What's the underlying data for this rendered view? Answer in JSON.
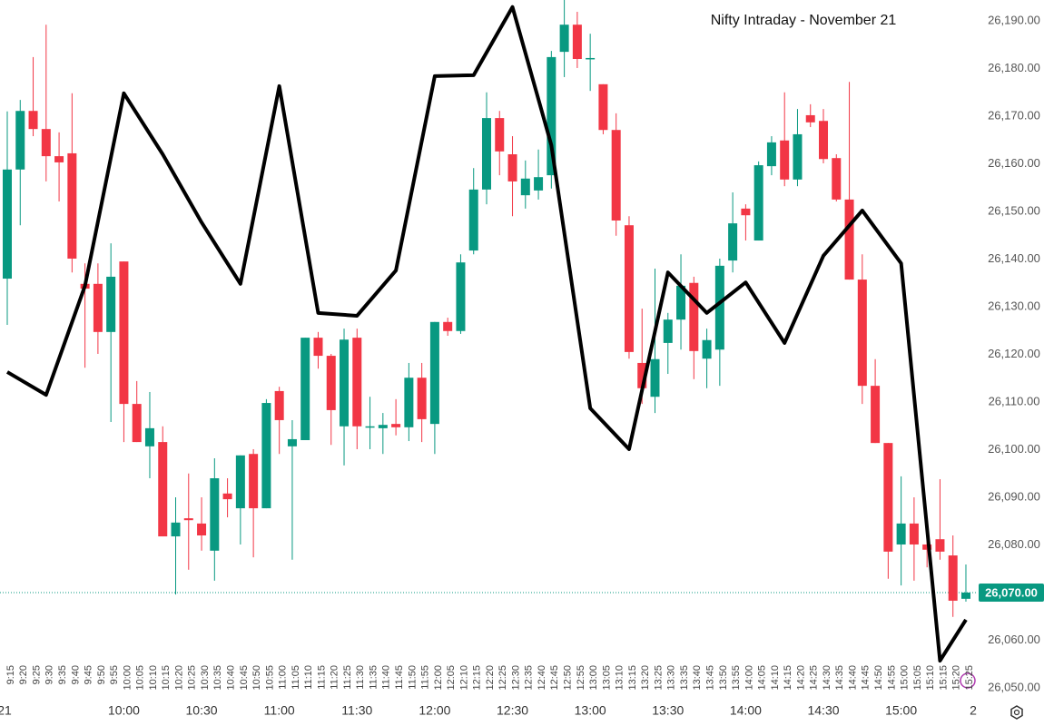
{
  "chart_data": {
    "type": "candlestick",
    "title": "Nifty Intraday - November 21",
    "categories": [
      "9:15",
      "9:20",
      "9:25",
      "9:30",
      "9:35",
      "9:40",
      "9:45",
      "9:50",
      "9:55",
      "10:00",
      "10:05",
      "10:10",
      "10:15",
      "10:20",
      "10:25",
      "10:30",
      "10:35",
      "10:40",
      "10:45",
      "10:50",
      "10:55",
      "11:00",
      "11:05",
      "11:10",
      "11:15",
      "11:20",
      "11:25",
      "11:30",
      "11:35",
      "11:40",
      "11:45",
      "11:50",
      "11:55",
      "12:00",
      "12:05",
      "12:10",
      "12:15",
      "12:20",
      "12:25",
      "12:30",
      "12:35",
      "12:40",
      "12:45",
      "12:50",
      "12:55",
      "13:00",
      "13:05",
      "13:10",
      "13:15",
      "13:20",
      "13:25",
      "13:30",
      "13:35",
      "13:40",
      "13:45",
      "13:50",
      "13:55",
      "14:00",
      "14:05",
      "14:10",
      "14:15",
      "14:20",
      "14:25",
      "14:30",
      "14:35",
      "14:40",
      "14:45",
      "14:50",
      "14:55",
      "15:00",
      "15:05",
      "15:10",
      "15:15",
      "15:20",
      "15:25"
    ],
    "open": [
      26135.9,
      26158.8,
      26171.1,
      26167.3,
      26161.6,
      26162.2,
      26134.8,
      26134.8,
      26124.7,
      26139.5,
      26109.6,
      26100.7,
      26101.6,
      26081.8,
      26085.6,
      26084.5,
      26078.8,
      26090.8,
      26087.7,
      26099.1,
      26087.7,
      26112.3,
      26100.7,
      26102,
      26123.5,
      26119.7,
      26104.9,
      26123.5,
      26104.7,
      26104.5,
      26105.4,
      26104.7,
      26115.1,
      26105.4,
      26126.8,
      26124.9,
      26141.8,
      26154.6,
      26169.6,
      26162,
      26153.4,
      26154.4,
      26157.6,
      26183.5,
      26189.2,
      26182,
      26176.7,
      26167.1,
      26147.1,
      26118.2,
      26111.1,
      26122.4,
      26127.3,
      26135,
      26119.1,
      26121,
      26139.7,
      26150.6,
      26143.9,
      26159.5,
      26164.9,
      26156.7,
      26170.2,
      26169,
      26161.2,
      26152.5,
      26135.7,
      26113.4,
      26101.4,
      26080.1,
      26084.5,
      26080.1,
      26081.2,
      26077.8,
      26068.7
    ],
    "high": [
      26171,
      26173.4,
      26182.4,
      26189.2,
      26166.6,
      26174.8,
      26139.1,
      26139.1,
      26143.3,
      26139.5,
      26114.4,
      26112.1,
      26104.9,
      26090,
      26095,
      26090,
      26098.2,
      26094,
      26098.8,
      26100.1,
      26110.6,
      26113.2,
      26106.2,
      26123.5,
      26124.7,
      26120.1,
      26125.4,
      26125.4,
      26111.1,
      26107.7,
      26110.6,
      26118.2,
      26118.2,
      26126.8,
      26127.7,
      26141,
      26159.1,
      26175,
      26171.1,
      26165.8,
      26160.7,
      26163,
      26183.7,
      26194.4,
      26191.9,
      26187.3,
      26176.7,
      26170.6,
      26149,
      26129.6,
      26138,
      26128.7,
      26141,
      26136.3,
      26125.4,
      26140.1,
      26154,
      26151.5,
      26160.5,
      26165.8,
      26175,
      26171.5,
      26172.5,
      26171.5,
      26162,
      26177.2,
      26141,
      26119,
      26101.4,
      26094.4,
      26090,
      26084.3,
      26093.8,
      26082,
      26075.9
    ],
    "low": [
      26126.2,
      26147.1,
      26165.8,
      26156.3,
      26152.1,
      26137.2,
      26117.2,
      26120.1,
      26105.8,
      26101.6,
      26101.6,
      26094,
      26081.8,
      26069.6,
      26074.8,
      26078.8,
      26072.5,
      26085.8,
      26080.1,
      26077.4,
      26087.7,
      26099.1,
      26076.9,
      26102,
      26117,
      26101,
      26096.7,
      26100.1,
      26100.1,
      26099.1,
      26103,
      26101.8,
      26101.6,
      26099.1,
      26123.9,
      26124.3,
      26141,
      26151.5,
      26157.6,
      26149,
      26150.6,
      26152.5,
      26154.8,
      26178.2,
      26180.1,
      26175.3,
      26166.2,
      26144.9,
      26119.1,
      26109.6,
      26107.7,
      26115.9,
      26121,
      26114.8,
      26112.9,
      26113.4,
      26137.2,
      26143.9,
      26143.9,
      26157.6,
      26155.3,
      26155.3,
      26167.7,
      26160.1,
      26152.1,
      26135.7,
      26109.6,
      26101.4,
      26072.9,
      26071.5,
      26072.5,
      26075.3,
      26076.9,
      26064.9,
      26068.1
    ],
    "close": [
      26158.8,
      26171.1,
      26167.3,
      26161.6,
      26160.3,
      26140.1,
      26133.8,
      26124.7,
      26136.3,
      26109.6,
      26101.6,
      26104.5,
      26081.8,
      26084.7,
      26085.2,
      26082,
      26094,
      26089.6,
      26098.8,
      26087.7,
      26109.8,
      26106.2,
      26102.2,
      26123.5,
      26119.7,
      26108.3,
      26123.1,
      26104.9,
      26104.9,
      26105.2,
      26104.7,
      26115.1,
      26106.4,
      26126.8,
      26124.9,
      26139.3,
      26154.6,
      26169.6,
      26162.6,
      26156.3,
      26156.9,
      26157.2,
      26182.4,
      26189.2,
      26182,
      26182.2,
      26167.1,
      26148.1,
      26120.5,
      26112.9,
      26119,
      26127.3,
      26134.4,
      26120.7,
      26123,
      26138.6,
      26147.5,
      26149.2,
      26159.7,
      26164.5,
      26156.7,
      26166.2,
      26168.7,
      26161,
      26152.5,
      26135.7,
      26113.4,
      26101.4,
      26078.6,
      26084.5,
      26080.1,
      26079,
      26078.6,
      26068.3,
      26070
    ],
    "up_color": "#089981",
    "down_color": "#f23645",
    "line": {
      "color": "#000000",
      "x": [
        "9:15",
        "9:30",
        "9:45",
        "10:00",
        "10:15",
        "10:30",
        "10:45",
        "11:00",
        "11:15",
        "11:30",
        "11:45",
        "12:00",
        "12:15",
        "12:30",
        "12:45",
        "13:00",
        "13:15",
        "13:30",
        "13:45",
        "14:00",
        "14:15",
        "14:30",
        "14:45",
        "15:00",
        "15:15",
        "15:25"
      ],
      "values": [
        26116.3,
        26111.5,
        26134.4,
        26174.8,
        26162.0,
        26147.7,
        26134.8,
        26176.3,
        26128.7,
        26128.1,
        26137.6,
        26178.4,
        26178.6,
        26192.9,
        26163.9,
        26108.7,
        26100.1,
        26137.2,
        26128.7,
        26135.1,
        26122.4,
        26140.7,
        26150.2,
        26139.1,
        26055.7,
        26064.3
      ]
    },
    "x_major": [
      "21",
      "10:00",
      "10:30",
      "11:00",
      "11:30",
      "12:00",
      "12:30",
      "13:00",
      "13:30",
      "14:00",
      "14:30",
      "15:00",
      "2"
    ],
    "ylim": [
      26045,
      26195
    ],
    "yticks": [
      {
        "value": 26050,
        "label": "26,050.00"
      },
      {
        "value": 26060,
        "label": "26,060.00"
      },
      {
        "value": 26070,
        "label": "26,070.00"
      },
      {
        "value": 26080,
        "label": "26,080.00"
      },
      {
        "value": 26090,
        "label": "26,090.00"
      },
      {
        "value": 26100,
        "label": "26,100.00"
      },
      {
        "value": 26110,
        "label": "26,110.00"
      },
      {
        "value": 26120,
        "label": "26,120.00"
      },
      {
        "value": 26130,
        "label": "26,130.00"
      },
      {
        "value": 26140,
        "label": "26,140.00"
      },
      {
        "value": 26150,
        "label": "26,150.00"
      },
      {
        "value": 26160,
        "label": "26,160.00"
      },
      {
        "value": 26170,
        "label": "26,170.00"
      },
      {
        "value": 26180,
        "label": "26,180.00"
      },
      {
        "value": 26190,
        "label": "26,190.00"
      }
    ],
    "last_price": {
      "value": 26070,
      "label": "26,070.00"
    }
  }
}
